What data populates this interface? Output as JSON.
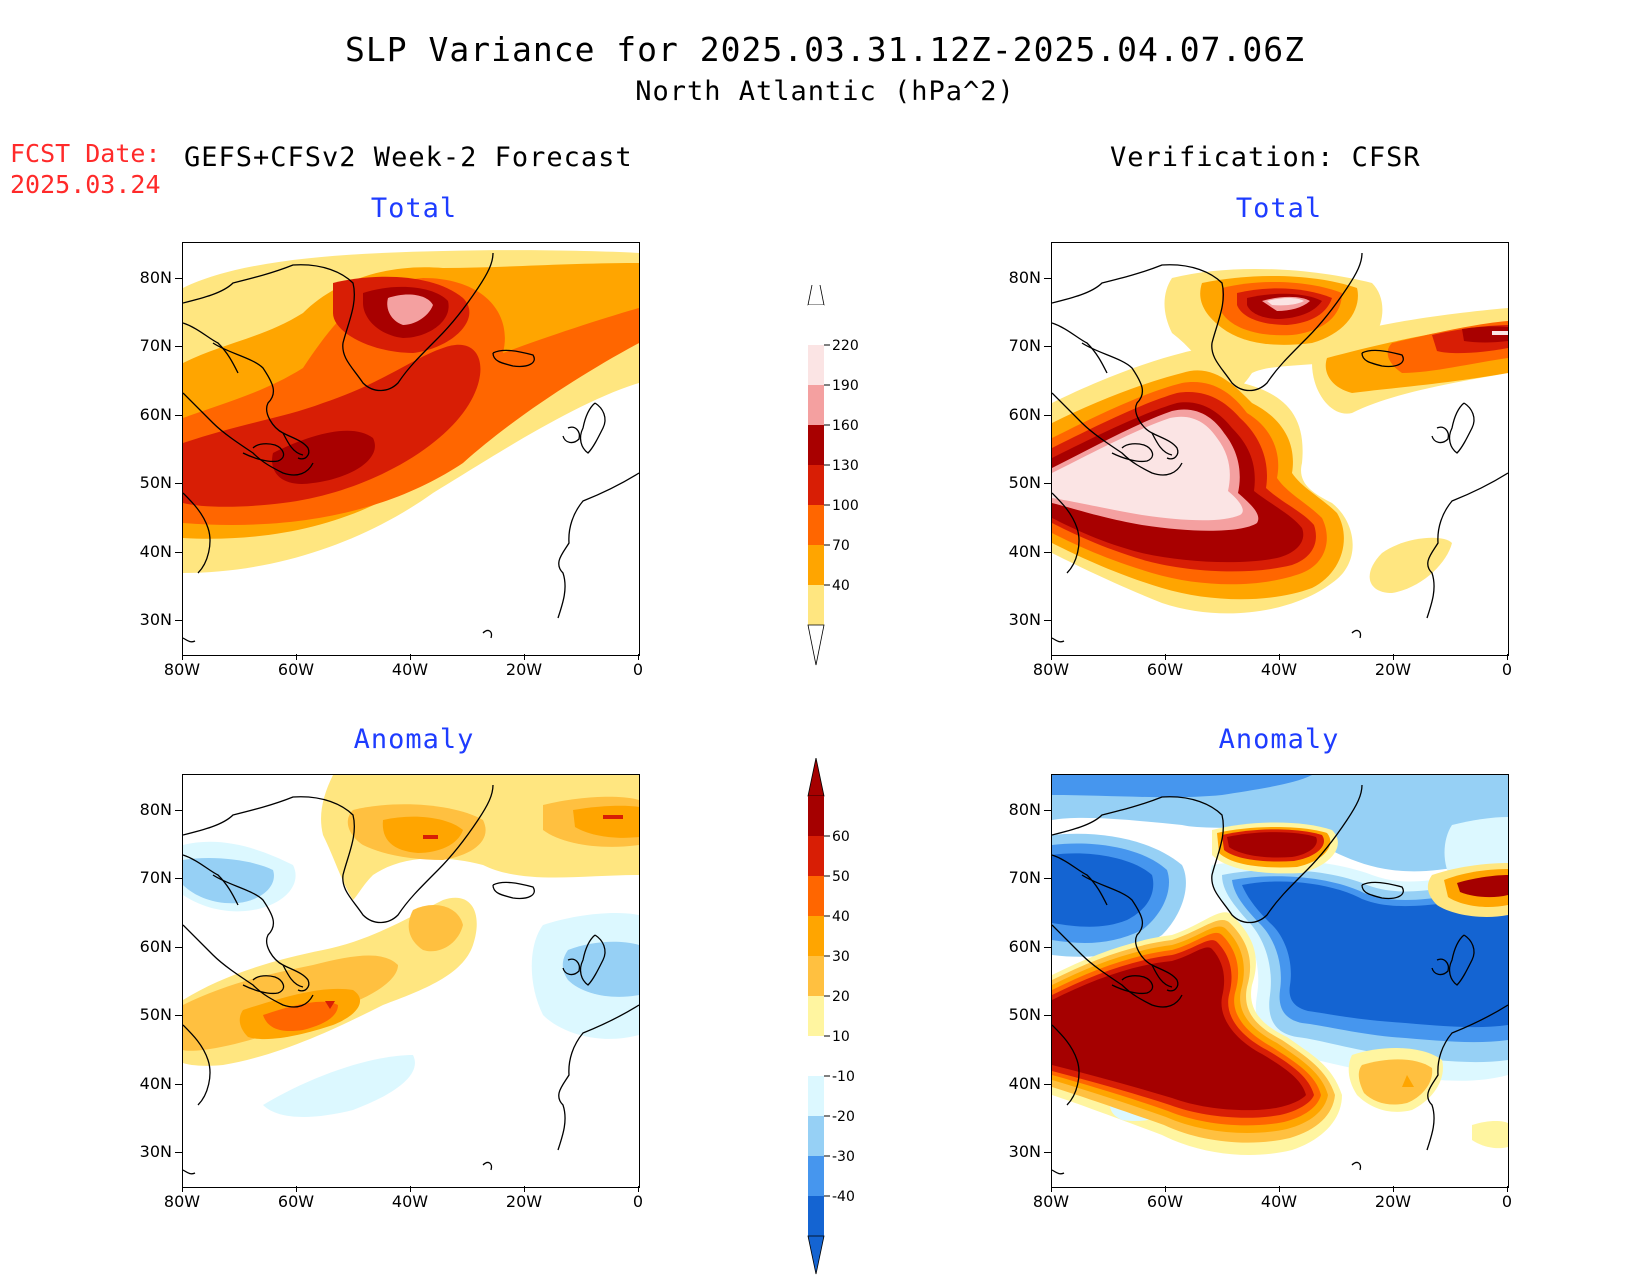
{
  "title_line1": "SLP Variance for 2025.03.31.12Z-2025.04.07.06Z",
  "title_line2": "North Atlantic (hPa^2)",
  "fcst_label": "FCST Date:",
  "fcst_date": "2025.03.24",
  "left_header": "GEFS+CFSv2 Week-2 Forecast",
  "right_header": "Verification: CFSR",
  "panels": {
    "fc_total_title": "Total",
    "ver_total_title": "Total",
    "fc_anom_title": "Anomaly",
    "ver_anom_title": "Anomaly"
  },
  "axes": {
    "lat_labels": [
      "80N",
      "70N",
      "60N",
      "50N",
      "40N",
      "30N"
    ],
    "lon_labels": [
      "80W",
      "60W",
      "40W",
      "20W",
      "0"
    ]
  },
  "colorbars": {
    "total": {
      "labels": [
        "220",
        "190",
        "160",
        "130",
        "100",
        "70",
        "40"
      ],
      "colors": [
        "#fbe4e4",
        "#f4a0a0",
        "#a80000",
        "#d81e05",
        "#ff6600",
        "#ffa500",
        "#ffe680"
      ]
    },
    "anomaly": {
      "labels": [
        "60",
        "50",
        "40",
        "30",
        "20",
        "10",
        "-10",
        "-20",
        "-30",
        "-40"
      ],
      "colors": [
        "#a50000",
        "#d81e05",
        "#ff6600",
        "#ffa500",
        "#ffc040",
        "#fff5a0",
        "#ffffff",
        "#dcf8ff",
        "#96d0f5",
        "#4696ee",
        "#1464d2"
      ]
    }
  },
  "colors": {
    "title_blue": "#1e3cff",
    "fcst_red": "#ff2a2a"
  }
}
